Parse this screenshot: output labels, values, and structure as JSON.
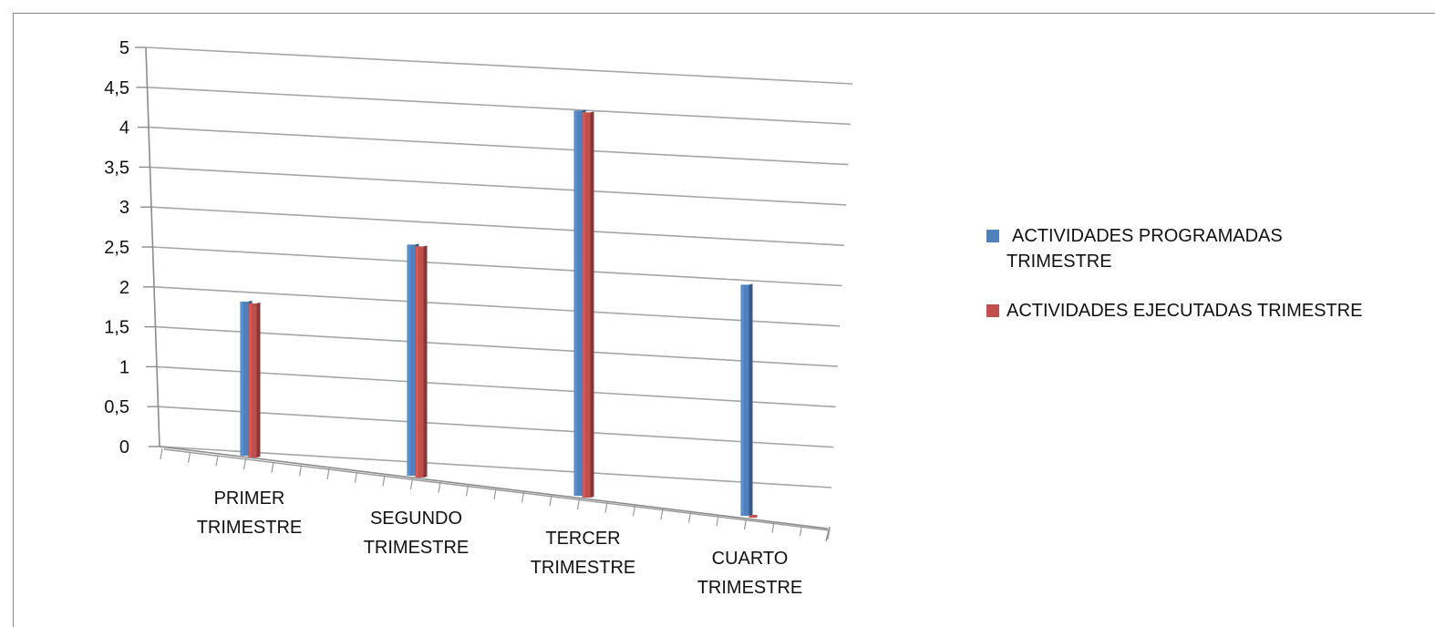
{
  "chart_data": {
    "type": "bar",
    "style": "3d-clustered-column",
    "categories": [
      [
        "PRIMER",
        "TRIMESTRE"
      ],
      [
        "SEGUNDO",
        "TRIMESTRE"
      ],
      [
        "TERCER",
        "TRIMESTRE"
      ],
      [
        "CUARTO",
        "TRIMESTRE"
      ]
    ],
    "series": [
      {
        "name": "ACTIVIDADES PROGRAMADAS TRIMESTRE",
        "legend_lines": [
          "ACTIVIDADES PROGRAMADAS",
          "TRIMESTRE"
        ],
        "color": "#4f81bd",
        "values": [
          2,
          3,
          5,
          3
        ]
      },
      {
        "name": "ACTIVIDADES EJECUTADAS TRIMESTRE",
        "legend_lines": [
          "ACTIVIDADES EJECUTADAS TRIMESTRE"
        ],
        "color": "#c0504d",
        "values": [
          2,
          3,
          5,
          0
        ]
      }
    ],
    "y_ticks": [
      "0",
      "0,5",
      "1",
      "1,5",
      "2",
      "2,5",
      "3",
      "3,5",
      "4",
      "4,5",
      "5"
    ],
    "ylim": [
      0,
      5
    ],
    "grid": true,
    "legend_position": "right"
  }
}
